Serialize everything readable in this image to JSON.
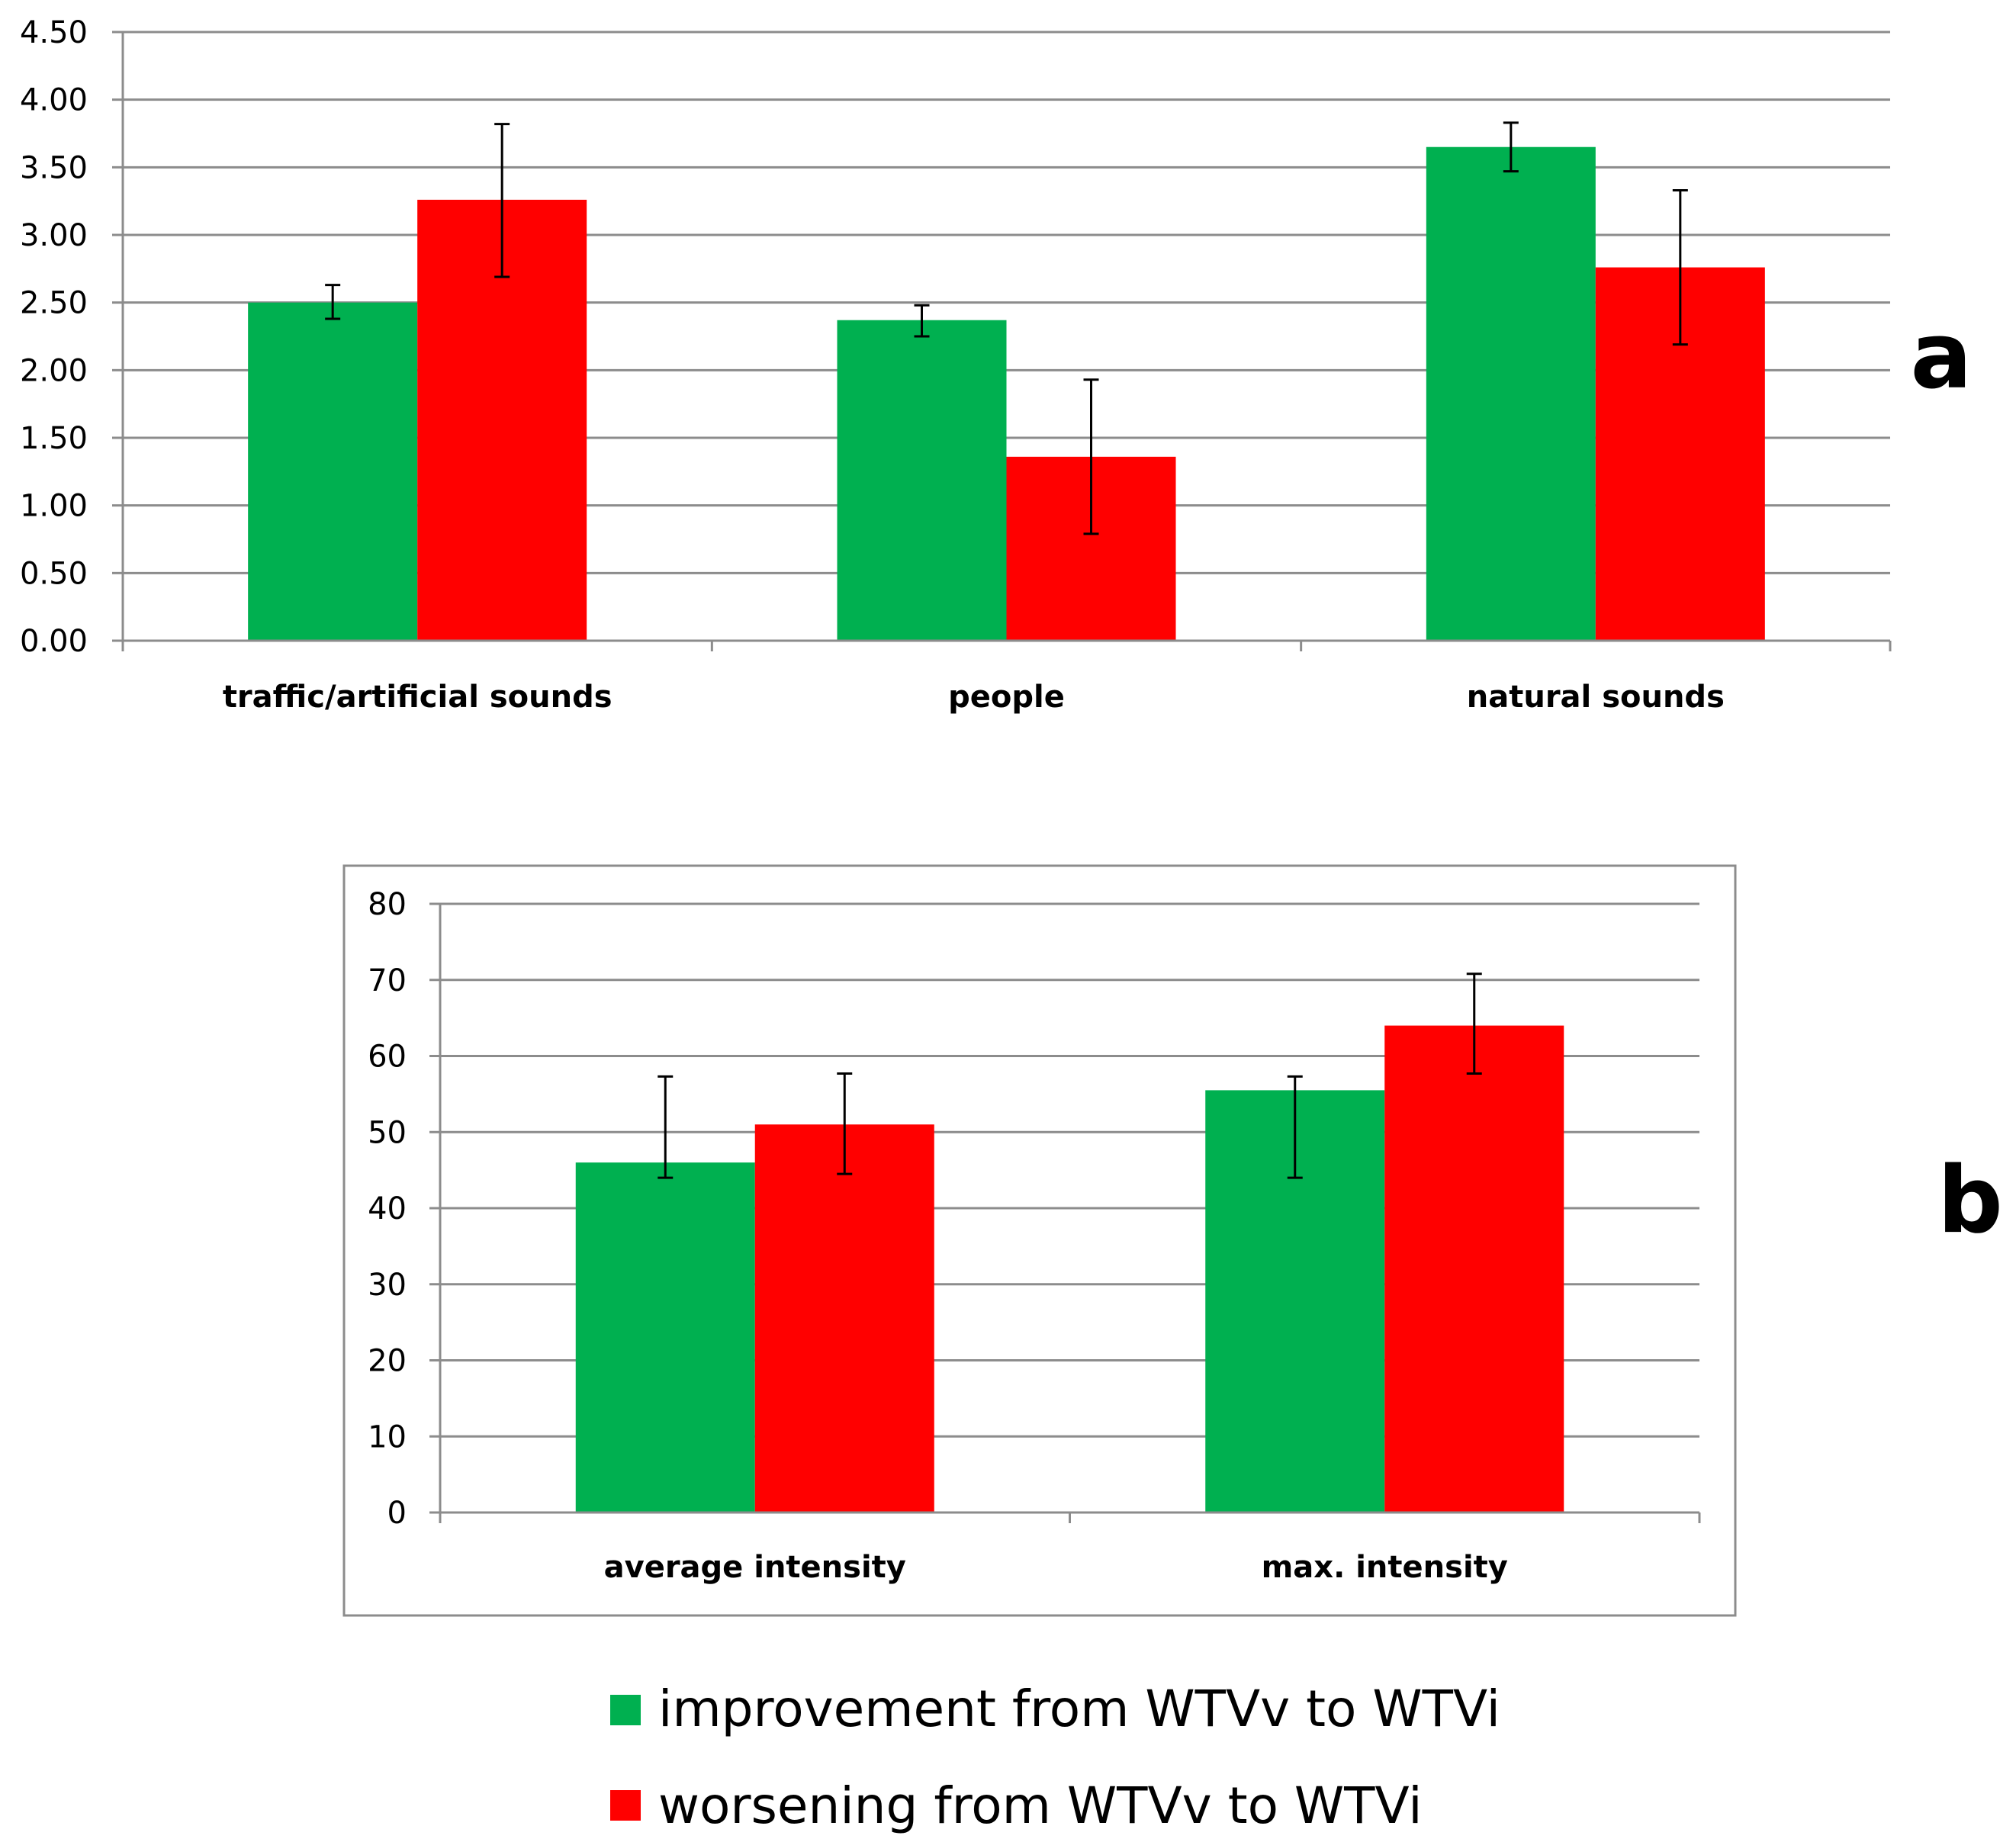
{
  "chart_data": [
    {
      "panel": "a",
      "type": "bar",
      "categories": [
        "traffic/artificial sounds",
        "people",
        "natural sounds"
      ],
      "ylim": [
        0,
        4.5
      ],
      "yticks": [
        "0.00",
        "0.50",
        "1.00",
        "1.50",
        "2.00",
        "2.50",
        "3.00",
        "3.50",
        "4.00",
        "4.50"
      ],
      "grid": true,
      "series": [
        {
          "name": "improvement from WTVv to WTVi",
          "color": "#00b050",
          "values": [
            2.5,
            2.37,
            3.65
          ],
          "error_low": [
            2.38,
            2.25,
            3.47
          ],
          "error_high": [
            2.63,
            2.48,
            3.83
          ]
        },
        {
          "name": "worsening from WTVv to WTVi",
          "color": "#ff0000",
          "values": [
            3.26,
            1.36,
            2.76
          ],
          "error_low": [
            2.69,
            0.79,
            2.19
          ],
          "error_high": [
            3.82,
            1.93,
            3.33
          ]
        }
      ]
    },
    {
      "panel": "b",
      "type": "bar",
      "categories": [
        "average intensity",
        "max. intensity"
      ],
      "ylim": [
        0,
        80
      ],
      "yticks": [
        "0",
        "10",
        "20",
        "30",
        "40",
        "50",
        "60",
        "70",
        "80"
      ],
      "grid": true,
      "series": [
        {
          "name": "improvement from WTVv to WTVi",
          "color": "#00b050",
          "values": [
            46,
            55.5
          ],
          "error_low": [
            44,
            44
          ],
          "error_high": [
            57.3,
            57.3
          ]
        },
        {
          "name": "worsening from WTVv to WTVi",
          "color": "#ff0000",
          "values": [
            51,
            64
          ],
          "error_low": [
            44.5,
            57.7
          ],
          "error_high": [
            57.7,
            70.8
          ]
        }
      ]
    }
  ],
  "panel_labels": [
    "a",
    "b"
  ],
  "legend": {
    "placement": "bottom-center",
    "items": [
      {
        "label": "improvement from WTVv to WTVi",
        "color": "#00b050"
      },
      {
        "label": "worsening from WTVv to WTVi",
        "color": "#ff0000"
      }
    ]
  }
}
